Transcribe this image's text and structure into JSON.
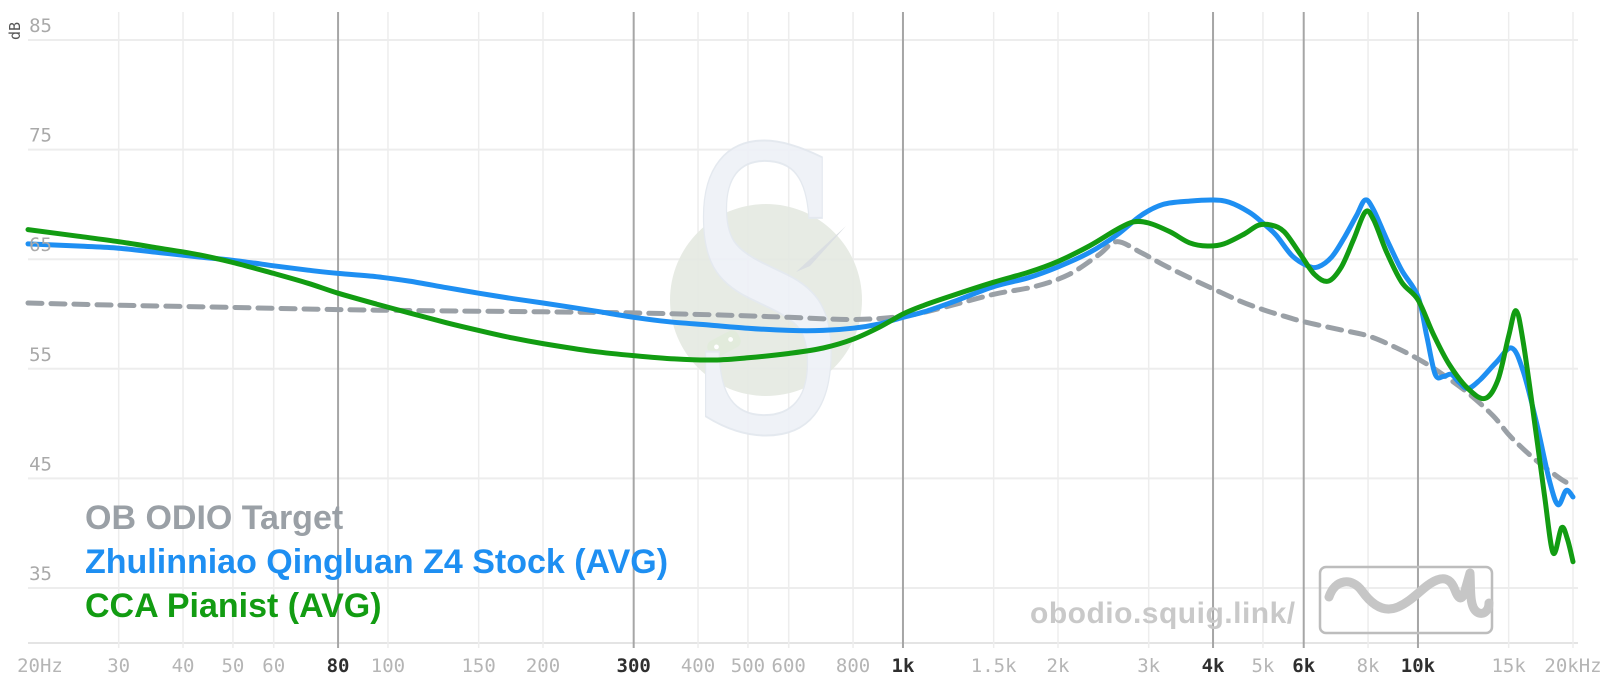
{
  "chart_data": {
    "type": "line",
    "title": "",
    "grid": true,
    "legend_position": "bottom-left",
    "x_axis": {
      "scale": "log",
      "min": 20,
      "max": 20000,
      "ticks": [
        {
          "f": 20,
          "label": "20Hz",
          "bold": false,
          "line": false
        },
        {
          "f": 30,
          "label": "30",
          "bold": false,
          "line": true
        },
        {
          "f": 40,
          "label": "40",
          "bold": false,
          "line": true
        },
        {
          "f": 50,
          "label": "50",
          "bold": false,
          "line": true
        },
        {
          "f": 60,
          "label": "60",
          "bold": false,
          "line": true
        },
        {
          "f": 80,
          "label": "80",
          "bold": true,
          "line": true
        },
        {
          "f": 100,
          "label": "100",
          "bold": false,
          "line": true
        },
        {
          "f": 150,
          "label": "150",
          "bold": false,
          "line": true
        },
        {
          "f": 200,
          "label": "200",
          "bold": false,
          "line": true
        },
        {
          "f": 300,
          "label": "300",
          "bold": true,
          "line": true
        },
        {
          "f": 400,
          "label": "400",
          "bold": false,
          "line": true
        },
        {
          "f": 500,
          "label": "500",
          "bold": false,
          "line": true
        },
        {
          "f": 600,
          "label": "600",
          "bold": false,
          "line": true
        },
        {
          "f": 800,
          "label": "800",
          "bold": false,
          "line": true
        },
        {
          "f": 1000,
          "label": "1k",
          "bold": true,
          "line": true
        },
        {
          "f": 1500,
          "label": "1.5k",
          "bold": false,
          "line": true
        },
        {
          "f": 2000,
          "label": "2k",
          "bold": false,
          "line": true
        },
        {
          "f": 3000,
          "label": "3k",
          "bold": false,
          "line": true
        },
        {
          "f": 4000,
          "label": "4k",
          "bold": true,
          "line": true
        },
        {
          "f": 5000,
          "label": "5k",
          "bold": false,
          "line": true
        },
        {
          "f": 6000,
          "label": "6k",
          "bold": true,
          "line": true
        },
        {
          "f": 8000,
          "label": "8k",
          "bold": false,
          "line": true
        },
        {
          "f": 10000,
          "label": "10k",
          "bold": true,
          "line": true
        },
        {
          "f": 15000,
          "label": "15k",
          "bold": false,
          "line": true
        },
        {
          "f": 20000,
          "label": "20kHz",
          "bold": false,
          "line": true
        }
      ]
    },
    "y_axis": {
      "label": "dB",
      "min": 35,
      "max": 85,
      "ticks": [
        35,
        45,
        55,
        65,
        75,
        85
      ]
    },
    "series": [
      {
        "name": "OB ODIO Target",
        "color": "#9aa0a6",
        "style": "dashed",
        "points": [
          [
            20,
            61.0
          ],
          [
            30,
            60.8
          ],
          [
            50,
            60.6
          ],
          [
            80,
            60.4
          ],
          [
            120,
            60.3
          ],
          [
            200,
            60.2
          ],
          [
            300,
            60.1
          ],
          [
            450,
            59.9
          ],
          [
            600,
            59.7
          ],
          [
            800,
            59.5
          ],
          [
            1000,
            59.8
          ],
          [
            1200,
            60.6
          ],
          [
            1500,
            61.8
          ],
          [
            1800,
            62.5
          ],
          [
            2100,
            63.6
          ],
          [
            2400,
            65.4
          ],
          [
            2600,
            66.6
          ],
          [
            2900,
            65.6
          ],
          [
            3200,
            64.5
          ],
          [
            3600,
            63.3
          ],
          [
            4000,
            62.3
          ],
          [
            4500,
            61.2
          ],
          [
            5000,
            60.4
          ],
          [
            5500,
            59.8
          ],
          [
            6000,
            59.3
          ],
          [
            7000,
            58.6
          ],
          [
            8000,
            58.0
          ],
          [
            9000,
            57.0
          ],
          [
            10000,
            55.9
          ],
          [
            11000,
            54.7
          ],
          [
            12500,
            52.8
          ],
          [
            14000,
            50.7
          ],
          [
            15000,
            49.0
          ],
          [
            16000,
            47.7
          ],
          [
            17000,
            46.6
          ],
          [
            18000,
            45.7
          ],
          [
            19000,
            44.9
          ],
          [
            20000,
            44.3
          ]
        ]
      },
      {
        "name": "Zhulinniao Qingluan Z4 Stock (AVG)",
        "color": "#1e8ff2",
        "style": "solid",
        "points": [
          [
            20,
            66.4
          ],
          [
            25,
            66.2
          ],
          [
            30,
            66.0
          ],
          [
            36,
            65.6
          ],
          [
            43,
            65.2
          ],
          [
            50,
            64.9
          ],
          [
            60,
            64.4
          ],
          [
            70,
            64.0
          ],
          [
            80,
            63.7
          ],
          [
            95,
            63.4
          ],
          [
            110,
            63.0
          ],
          [
            130,
            62.4
          ],
          [
            150,
            61.9
          ],
          [
            175,
            61.4
          ],
          [
            200,
            61.0
          ],
          [
            250,
            60.3
          ],
          [
            300,
            59.7
          ],
          [
            350,
            59.3
          ],
          [
            420,
            59.0
          ],
          [
            500,
            58.7
          ],
          [
            600,
            58.5
          ],
          [
            700,
            58.5
          ],
          [
            800,
            58.7
          ],
          [
            900,
            59.1
          ],
          [
            1000,
            59.7
          ],
          [
            1100,
            60.2
          ],
          [
            1250,
            61.1
          ],
          [
            1500,
            62.5
          ],
          [
            1750,
            63.3
          ],
          [
            2000,
            64.3
          ],
          [
            2300,
            65.6
          ],
          [
            2600,
            67.2
          ],
          [
            2900,
            69.0
          ],
          [
            3200,
            70.0
          ],
          [
            3600,
            70.3
          ],
          [
            4000,
            70.4
          ],
          [
            4300,
            70.2
          ],
          [
            4700,
            69.3
          ],
          [
            5000,
            68.3
          ],
          [
            5300,
            67.2
          ],
          [
            5700,
            65.3
          ],
          [
            6100,
            64.4
          ],
          [
            6400,
            64.3
          ],
          [
            6800,
            65.2
          ],
          [
            7200,
            67.0
          ],
          [
            7600,
            69.0
          ],
          [
            7900,
            70.4
          ],
          [
            8200,
            69.5
          ],
          [
            8700,
            66.8
          ],
          [
            9300,
            64.0
          ],
          [
            10000,
            61.6
          ],
          [
            10400,
            58.0
          ],
          [
            10800,
            54.5
          ],
          [
            11200,
            54.3
          ],
          [
            11600,
            54.5
          ],
          [
            12000,
            53.8
          ],
          [
            12500,
            53.2
          ],
          [
            13200,
            54.0
          ],
          [
            14200,
            55.6
          ],
          [
            15200,
            56.9
          ],
          [
            16000,
            54.8
          ],
          [
            17000,
            50.0
          ],
          [
            18000,
            44.8
          ],
          [
            18700,
            42.6
          ],
          [
            19400,
            43.9
          ],
          [
            20000,
            43.3
          ]
        ]
      },
      {
        "name": "CCA Pianist (AVG)",
        "color": "#129c12",
        "style": "solid",
        "points": [
          [
            20,
            67.7
          ],
          [
            25,
            67.1
          ],
          [
            30,
            66.6
          ],
          [
            36,
            66.0
          ],
          [
            43,
            65.4
          ],
          [
            50,
            64.7
          ],
          [
            60,
            63.7
          ],
          [
            70,
            62.8
          ],
          [
            80,
            61.9
          ],
          [
            95,
            60.9
          ],
          [
            110,
            60.1
          ],
          [
            130,
            59.2
          ],
          [
            150,
            58.5
          ],
          [
            175,
            57.8
          ],
          [
            200,
            57.3
          ],
          [
            250,
            56.6
          ],
          [
            300,
            56.2
          ],
          [
            360,
            55.9
          ],
          [
            430,
            55.8
          ],
          [
            500,
            56.0
          ],
          [
            600,
            56.4
          ],
          [
            700,
            56.9
          ],
          [
            800,
            57.7
          ],
          [
            900,
            58.8
          ],
          [
            1000,
            60.0
          ],
          [
            1100,
            60.8
          ],
          [
            1250,
            61.7
          ],
          [
            1500,
            62.9
          ],
          [
            1750,
            63.8
          ],
          [
            2000,
            64.8
          ],
          [
            2300,
            66.2
          ],
          [
            2600,
            67.7
          ],
          [
            2800,
            68.4
          ],
          [
            3000,
            68.3
          ],
          [
            3300,
            67.5
          ],
          [
            3600,
            66.5
          ],
          [
            3900,
            66.2
          ],
          [
            4200,
            66.4
          ],
          [
            4600,
            67.3
          ],
          [
            4900,
            68.1
          ],
          [
            5200,
            68.1
          ],
          [
            5500,
            67.5
          ],
          [
            5900,
            65.5
          ],
          [
            6300,
            63.6
          ],
          [
            6700,
            63.0
          ],
          [
            7100,
            64.3
          ],
          [
            7500,
            66.8
          ],
          [
            7900,
            69.3
          ],
          [
            8200,
            68.6
          ],
          [
            8700,
            65.6
          ],
          [
            9300,
            62.9
          ],
          [
            10000,
            61.3
          ],
          [
            10700,
            58.2
          ],
          [
            11500,
            55.4
          ],
          [
            12500,
            53.2
          ],
          [
            13500,
            52.3
          ],
          [
            14300,
            54.0
          ],
          [
            15000,
            58.0
          ],
          [
            15500,
            60.3
          ],
          [
            16000,
            57.5
          ],
          [
            16800,
            50.5
          ],
          [
            17600,
            43.5
          ],
          [
            18300,
            38.2
          ],
          [
            19000,
            40.5
          ],
          [
            19500,
            39.5
          ],
          [
            20000,
            37.4
          ]
        ]
      }
    ]
  },
  "legend": {
    "items": [
      "OB ODIO Target",
      "Zhulinniao Qingluan Z4 Stock (AVG)",
      "CCA Pianist (AVG)"
    ]
  },
  "branding": {
    "site_text": "obodio.squig.link/",
    "logo_icon": "squiggle-icon"
  },
  "watermark": {
    "letter": "S",
    "icon": "squig-compass-logo"
  },
  "colors": {
    "background": "#ffffff",
    "grid_light": "#ededed",
    "grid_bold": "#a6a6a6",
    "axis_line": "#e4e4e4",
    "tick_label": "#b5b5b5",
    "tick_label_bold": "#2f2f2f",
    "y_tick_label": "#a9a9a9",
    "axis_unit_label": "#555555",
    "branding_text": "#c9c9c9",
    "logo_stroke": "#c6c6c6",
    "logo_border": "#bdbdbd",
    "watermark_circle": "#e5e9e2",
    "watermark_needle": "#d6dbdf",
    "watermark_s_fill": "#eef1f7",
    "watermark_s_edge": "#e2e7ee",
    "watermark_pad": "#dfe9d9"
  }
}
